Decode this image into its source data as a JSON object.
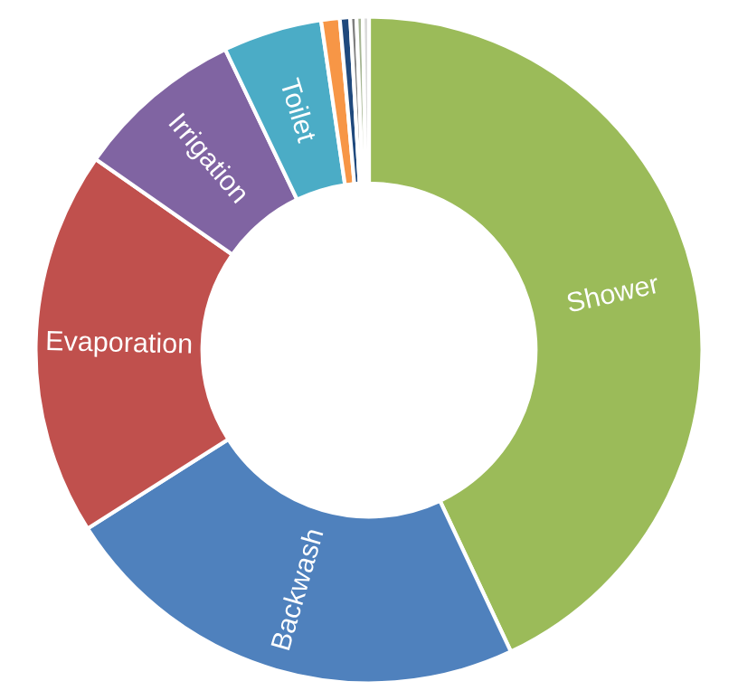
{
  "chart_data": {
    "type": "donut",
    "categories": [
      "Shower",
      "Backwash",
      "Evaporation",
      "Irrigation",
      "Toilet",
      null,
      null,
      null,
      null,
      null
    ],
    "values": [
      43,
      23,
      18.7,
      8.2,
      4.8,
      0.9,
      0.5,
      0.3,
      0.3,
      0.3
    ],
    "colors": [
      "#9bbb59",
      "#4f81bd",
      "#c0504d",
      "#8064a2",
      "#4bacc6",
      "#f79646",
      "#1f497d",
      "#7f7f7f",
      "#a5b592",
      "#d9d9d9"
    ],
    "legend": false
  }
}
